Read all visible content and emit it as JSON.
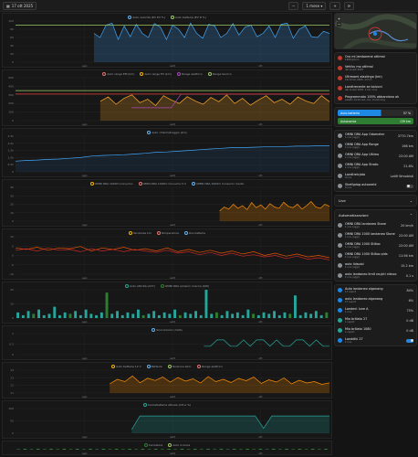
{
  "toolbar": {
    "date_label": "17 ott 2025",
    "range_label": "1 mese",
    "refresh_label": "⟳"
  },
  "charts": [
    {
      "id": "p1",
      "top": 0,
      "height": 60,
      "legend": [
        {
          "label": "Auto velocità (EC EV %)",
          "color": "#64b5f6"
        },
        {
          "label": "Auto batteria (EV R %)",
          "color": "#9ccc65"
        }
      ],
      "yticks": [
        "100",
        "80",
        "60",
        "40",
        "20",
        "0"
      ],
      "series": [
        {
          "color": "#42a5f5",
          "fill": "#42a5f5",
          "start": 0.25,
          "values": [
            70,
            60,
            90,
            95,
            55,
            88,
            62,
            92,
            70,
            60,
            94,
            85,
            55,
            90,
            80,
            60,
            95,
            70,
            58,
            92,
            88,
            60,
            70,
            94,
            66,
            85,
            90,
            62,
            70,
            88,
            60,
            92,
            95,
            58,
            80,
            88,
            62,
            60,
            75,
            70
          ]
        },
        {
          "color": "#9ccc65",
          "fill": "",
          "start": 0.0,
          "values": [
            90,
            90,
            90,
            90,
            90,
            90,
            90,
            90,
            90,
            90,
            90,
            90,
            90,
            90,
            90,
            90,
            90,
            90,
            90,
            90,
            90,
            90,
            90,
            90,
            90,
            90,
            90,
            90,
            90,
            90
          ]
        }
      ]
    },
    {
      "id": "p2",
      "top": 62,
      "height": 62,
      "legend": [
        {
          "label": "Auto range EM (km)",
          "color": "#e57373"
        },
        {
          "label": "Auto range EV (km)",
          "color": "#f4b400"
        },
        {
          "label": "Range elettrico",
          "color": "#ab47bc"
        },
        {
          "label": "Range teorico",
          "color": "#9ccc65"
        }
      ],
      "yticks": [
        "500",
        "400",
        "300",
        "200",
        "100",
        "0"
      ],
      "series": [
        {
          "color": "#ffa726",
          "fill": "#ffa726",
          "start": 0.27,
          "values": [
            45,
            55,
            38,
            52,
            60,
            42,
            50,
            35,
            58,
            48,
            40,
            56,
            46,
            38,
            54,
            44,
            60,
            40,
            52,
            36,
            48,
            58,
            42,
            50,
            38,
            55,
            46,
            40,
            58,
            44
          ]
        },
        {
          "color": "#ab47bc",
          "fill": "",
          "start": 0.37,
          "values": [
            30,
            30,
            30,
            30,
            30,
            62,
            62,
            62,
            62,
            62,
            62,
            62,
            62,
            62,
            62,
            62,
            62,
            62,
            62,
            62,
            62
          ]
        },
        {
          "color": "#e53935",
          "fill": "",
          "start": 0.0,
          "values": [
            62,
            62,
            62,
            62,
            62,
            62,
            62,
            62,
            62,
            62,
            62,
            62,
            62,
            62,
            62,
            62,
            62,
            62,
            62,
            62
          ]
        },
        {
          "color": "#9ccc65",
          "fill": "",
          "start": 0.0,
          "values": [
            70,
            70,
            70,
            70,
            70,
            70,
            70,
            70,
            70,
            70,
            70,
            70,
            70,
            70,
            70,
            70,
            70,
            70,
            70,
            70
          ]
        }
      ]
    },
    {
      "id": "p3",
      "top": 126,
      "height": 54,
      "legend": [
        {
          "label": "Auto chilometraggio (km)",
          "color": "#64b5f6"
        }
      ],
      "yticks": [
        "2.5k",
        "2.0k",
        "1.5k",
        "1.0k",
        "0.5k",
        "0"
      ],
      "series": [
        {
          "color": "#42a5f5",
          "fill": "#1e4f7a",
          "start": 0.0,
          "values": [
            30,
            32,
            33,
            35,
            36,
            38,
            40,
            44,
            46,
            47,
            48,
            50,
            52,
            55,
            56,
            58,
            60,
            62,
            64,
            66,
            68,
            68,
            69,
            70,
            70,
            71,
            72,
            72,
            73,
            73
          ]
        }
      ]
    },
    {
      "id": "p4",
      "top": 182,
      "height": 52,
      "legend": [
        {
          "label": "OMNI DRA 1000m Consumo",
          "color": "#f4b400"
        },
        {
          "label": "OMNI DRA 1000m Consumo 5 h",
          "color": "#e57373"
        },
        {
          "label": "OMNI DRA 1000m Consumo medio",
          "color": "#64b5f6"
        }
      ],
      "yticks": [
        "40",
        "30",
        "20",
        "10",
        "0"
      ],
      "series": [
        {
          "color": "#ff8f00",
          "fill": "#ff8f00",
          "start": 0.65,
          "values": [
            30,
            42,
            36,
            50,
            38,
            46,
            34,
            55,
            40,
            48,
            36,
            52,
            42,
            38,
            56,
            44,
            40,
            50,
            36,
            46,
            58,
            42,
            38,
            50,
            44
          ]
        }
      ]
    },
    {
      "id": "p5",
      "top": 236,
      "height": 56,
      "legend": [
        {
          "label": "Tendenza km",
          "color": "#f4b400"
        },
        {
          "label": "Temperatura",
          "color": "#e57373"
        },
        {
          "label": "Ora batteria",
          "color": "#64b5f6"
        }
      ],
      "yticks": [
        "10",
        "5",
        "0",
        "-5",
        "-10"
      ],
      "series": [
        {
          "color": "#e65100",
          "fill": "",
          "start": 0.0,
          "values": [
            70,
            66,
            72,
            64,
            70,
            68,
            74,
            62,
            70,
            66,
            72,
            64,
            68,
            62,
            70,
            60,
            66,
            58,
            64,
            56,
            62,
            54,
            60,
            50,
            56,
            48,
            54,
            46,
            50,
            44
          ]
        },
        {
          "color": "#c62828",
          "fill": "",
          "start": 0.0,
          "values": [
            64,
            68,
            62,
            70,
            64,
            66,
            60,
            68,
            62,
            66,
            60,
            66,
            62,
            58,
            64,
            56,
            60,
            52,
            58,
            50,
            56,
            48,
            52,
            46,
            50,
            42,
            48,
            40,
            44,
            38
          ]
        }
      ]
    },
    {
      "id": "p6",
      "top": 294,
      "height": 46,
      "legend": [
        {
          "label": "Auto attività (ACT)",
          "color": "#26a69a"
        },
        {
          "label": "OMNI DRA emisión ricarica (KW)",
          "color": "#2e7d32"
        }
      ],
      "yticks": [
        "20",
        "10",
        "0"
      ],
      "bars": {
        "color": "#26a69a",
        "color2": "#2e7d32",
        "values": [
          4,
          2,
          5,
          3,
          6,
          2,
          3,
          8,
          2,
          4,
          3,
          5,
          2,
          6,
          3,
          2,
          4,
          18,
          3,
          5,
          2,
          4,
          3,
          6,
          2,
          3,
          5,
          2,
          4,
          3,
          6,
          2,
          4,
          3,
          5,
          2,
          20,
          3,
          4,
          2,
          5,
          3,
          4,
          2,
          6,
          3,
          2,
          4,
          3,
          5,
          2,
          4,
          3,
          16,
          2,
          4,
          3,
          5,
          2,
          4
        ]
      }
    },
    {
      "id": "p7",
      "top": 342,
      "height": 38,
      "legend": [
        {
          "label": "Sincronismo (mVA)",
          "color": "#64b5f6"
        }
      ],
      "yticks": [
        "1",
        "0.5",
        "0"
      ],
      "series": [
        {
          "color": "#26a69a",
          "fill": "",
          "start": 0.6,
          "values": [
            40,
            40,
            70,
            70,
            40,
            40,
            70,
            40,
            70,
            70,
            40,
            70,
            40,
            40,
            70,
            70,
            40,
            70,
            40,
            40
          ]
        }
      ]
    },
    {
      "id": "p8",
      "top": 382,
      "height": 40,
      "legend": [
        {
          "label": "Auto batteria 12 V",
          "color": "#f4b400"
        },
        {
          "label": "Batteria",
          "color": "#64b5f6"
        },
        {
          "label": "Tensione alim.",
          "color": "#9ccc65"
        },
        {
          "label": "Range elettrico",
          "color": "#e57373"
        }
      ],
      "yticks": [
        "14",
        "13",
        "12",
        "11"
      ],
      "series": [
        {
          "color": "#ff8f00",
          "fill": "#ff8f00",
          "start": 0.3,
          "values": [
            40,
            60,
            50,
            75,
            45,
            65,
            55,
            70,
            48,
            68,
            52,
            62,
            44,
            72,
            50,
            60,
            46,
            64,
            54,
            70,
            42,
            58,
            48,
            66,
            40,
            56,
            44,
            50,
            38,
            45
          ]
        }
      ]
    },
    {
      "id": "p9",
      "top": 424,
      "height": 42,
      "legend": [
        {
          "label": "Caricabatteria attuale (CH-A %)",
          "color": "#26a69a"
        }
      ],
      "yticks": [
        "100",
        "50",
        "0"
      ],
      "series": [
        {
          "color": "#26a69a",
          "fill": "#26a69a",
          "start": 0.37,
          "values": [
            15,
            70,
            70,
            70,
            70,
            70,
            70,
            70,
            70,
            70,
            70,
            70,
            70,
            70,
            70,
            70,
            20,
            70,
            70,
            70,
            70,
            70,
            70,
            70,
            70
          ]
        }
      ]
    },
    {
      "id": "p10",
      "top": 468,
      "height": 16,
      "legend": [
        {
          "label": "Caricatore",
          "color": "#2e7d32"
        },
        {
          "label": "Auto ricarica",
          "color": "#9ccc65"
        }
      ],
      "yticks": [],
      "bars": {
        "color": "#2e7d32",
        "color2": "#2e7d32",
        "values": [
          3,
          5,
          3,
          5,
          3,
          5,
          3,
          5,
          3,
          5,
          3,
          5,
          3,
          5,
          3,
          5,
          3,
          5,
          3,
          5,
          3,
          5,
          3,
          5,
          3,
          5,
          3,
          5,
          3,
          5,
          3,
          5,
          3,
          5,
          3,
          5,
          3,
          5,
          3,
          5,
          3,
          5,
          3,
          5,
          3,
          5,
          3,
          5
        ]
      }
    }
  ],
  "x_labels": [
    "ago",
    "sett",
    "ott"
  ],
  "sidebar": {
    "alerts": [
      {
        "title": "Ora mi lamborene ottimal",
        "sub": "1999 giorno"
      },
      {
        "title": "Vehiku mo ottimal",
        "sub": "dal lunedì 2025"
      },
      {
        "title": "Ultimami alaxlingo (km)",
        "sub": "19:10 lun 2025, 13 km"
      },
      {
        "title": "Landtrecente se balconi",
        "sub": "dal lunedì 2025, 1 km cons"
      },
      {
        "title": "Programmato 100% abbandono ok",
        "sub": "sabato 14:10 aut, ore: monitoring"
      }
    ],
    "bars": [
      {
        "label": "Auto batteria",
        "value": "57 %",
        "color": "#1e88e5",
        "fraction": 0.57
      },
      {
        "label": "Autonomia",
        "value": "139 km",
        "color": "#2e7d32",
        "fraction": 1.0
      }
    ],
    "stats": [
      {
        "title": "OMNI DRA App Odometer",
        "sub": "1 nov (oggi)",
        "value": "3770.7km"
      },
      {
        "title": "OMNI DRA App Range",
        "sub": "1 nov (oggi)",
        "value": "166 km"
      },
      {
        "title": "OMNI DRA App Ultimo",
        "sub": "1 nov (oggi)",
        "value": "22:00 AM"
      },
      {
        "title": "OMNI DRA App Strato",
        "sub": "1 nov (oggi)",
        "value": "21.8%"
      },
      {
        "title": "Landtreicjato",
        "sub": "0 nov",
        "value": "Latifi Wmobisti"
      },
      {
        "title": "Shelfgdag autooreid",
        "sub": "0 nov",
        "value": ""
      }
    ],
    "section_live": "Live",
    "section_actions": "Automatizzazioni",
    "actions": [
      {
        "title": "OMNI DRA landaneo Stone",
        "sub": "1 nov (oggi)",
        "value": "20 km/h"
      },
      {
        "title": "OMNI DRA 1000 landaneo Stone",
        "sub": "1 nov (oggi)",
        "value": "22:00 AM"
      },
      {
        "title": "OMNI DRA 1000 Stilloo",
        "sub": "1 nov (oggi)",
        "value": "22:00 AM"
      },
      {
        "title": "OMNI DRA 1000 Stilloo plds",
        "sub": "1 nov (oggi)",
        "value": "11:56 km"
      },
      {
        "title": "auto lidsoiol",
        "sub": "1 nov (oggi)",
        "value": "15.2 km"
      },
      {
        "title": "auto landaneo limit roujcti nitnoo",
        "sub": "1 nov (oggi)",
        "value": "0.1 s"
      }
    ],
    "toggles": [
      {
        "title": "Auto landaneo algonang",
        "sub": "17 report",
        "value": "84%",
        "color": "#1e88e5"
      },
      {
        "title": "auto landaneo algonang",
        "sub": "17 report",
        "value": "6%",
        "color": "#1e88e5"
      },
      {
        "title": "Landed: lune A",
        "sub": "1 nov",
        "value": "75%",
        "color": "#1e88e5"
      },
      {
        "title": "Mio brillato 27",
        "sub": "1 report",
        "value": "0 dB",
        "color": "#26a69a"
      },
      {
        "title": "Mio brillato 1080",
        "sub": "1 report",
        "value": "0 dB",
        "color": "#26a69a"
      },
      {
        "title": "Landdiki 27",
        "sub": "1 nov",
        "value": "",
        "color": "#1e88e5"
      }
    ]
  }
}
